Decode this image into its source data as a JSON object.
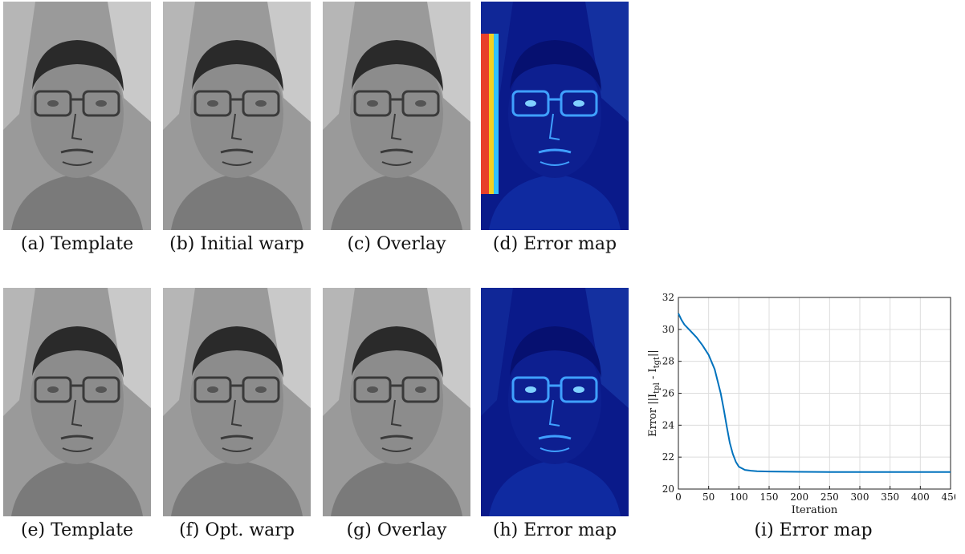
{
  "figure": {
    "top_row": [
      {
        "tag": "(a)",
        "label": "Template",
        "kind": "gray"
      },
      {
        "tag": "(b)",
        "label": "Initial warp",
        "kind": "gray"
      },
      {
        "tag": "(c)",
        "label": "Overlay",
        "kind": "gray"
      },
      {
        "tag": "(d)",
        "label": "Error map",
        "kind": "heat"
      }
    ],
    "bottom_row": [
      {
        "tag": "(e)",
        "label": "Template",
        "kind": "gray"
      },
      {
        "tag": "(f)",
        "label": "Opt. warp",
        "kind": "gray"
      },
      {
        "tag": "(g)",
        "label": "Overlay",
        "kind": "gray"
      },
      {
        "tag": "(h)",
        "label": "Error map",
        "kind": "heat"
      }
    ],
    "chart_caption": {
      "tag": "(i)",
      "label": "Error map"
    }
  },
  "chart_data": {
    "type": "line",
    "title": "",
    "xlabel": "Iteration",
    "ylabel_parts": {
      "prefix": "Error ||I",
      "sub1": "tpl",
      "mid": " - I",
      "sub2": "tgt",
      "suffix": "||"
    },
    "xlim": [
      0,
      450
    ],
    "ylim": [
      20,
      32
    ],
    "xticks": [
      0,
      50,
      100,
      150,
      200,
      250,
      300,
      350,
      400,
      450
    ],
    "yticks": [
      20,
      22,
      24,
      26,
      28,
      30,
      32
    ],
    "grid": true,
    "color": "#0072BD",
    "series": [
      {
        "x": [
          0,
          5,
          10,
          20,
          30,
          40,
          50,
          60,
          70,
          75,
          80,
          85,
          90,
          95,
          100,
          105,
          110,
          120,
          130,
          150,
          200,
          250,
          300,
          350,
          400,
          450
        ],
        "y": [
          31.0,
          30.6,
          30.3,
          29.9,
          29.5,
          29.0,
          28.4,
          27.5,
          26.0,
          25.0,
          23.9,
          22.9,
          22.2,
          21.7,
          21.4,
          21.3,
          21.2,
          21.15,
          21.12,
          21.1,
          21.08,
          21.07,
          21.07,
          21.07,
          21.07,
          21.07
        ]
      }
    ]
  }
}
